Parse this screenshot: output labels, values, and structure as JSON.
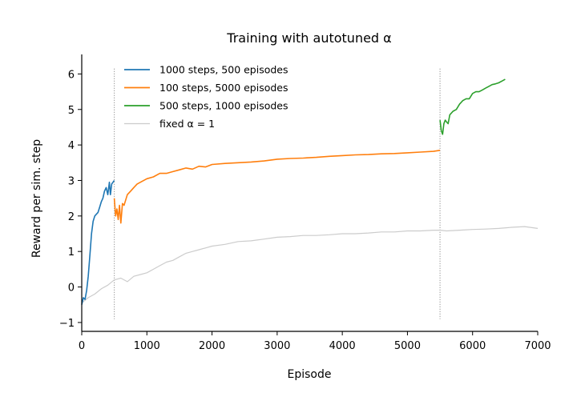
{
  "chart_data": {
    "type": "line",
    "title": "Training with autotuned α",
    "xlabel": "Episode",
    "ylabel": "Reward per sim. step",
    "xlim": [
      0,
      7000
    ],
    "ylim": [
      -1.25,
      6.55
    ],
    "xticks": [
      0,
      1000,
      2000,
      3000,
      4000,
      5000,
      6000,
      7000
    ],
    "xtick_labels": [
      "0",
      "1000",
      "2000",
      "3000",
      "4000",
      "5000",
      "6000",
      "7000"
    ],
    "yticks": [
      -1,
      0,
      1,
      2,
      3,
      4,
      5,
      6
    ],
    "ytick_labels": [
      "−1",
      "0",
      "1",
      "2",
      "3",
      "4",
      "5",
      "6"
    ],
    "grid": false,
    "legend_position": "top-left",
    "vlines": [
      500,
      5500
    ],
    "series": [
      {
        "name": "1000 steps, 500 episodes",
        "color": "#1f77b4",
        "x": [
          0,
          25,
          50,
          75,
          100,
          125,
          150,
          175,
          200,
          225,
          250,
          275,
          300,
          325,
          350,
          375,
          400,
          425,
          440,
          460,
          480,
          500
        ],
        "y": [
          -0.5,
          -0.3,
          -0.35,
          -0.1,
          0.3,
          0.9,
          1.5,
          1.85,
          2.0,
          2.05,
          2.1,
          2.25,
          2.4,
          2.5,
          2.7,
          2.8,
          2.6,
          2.95,
          2.6,
          2.9,
          2.95,
          3.0
        ]
      },
      {
        "name": "100 steps, 5000 episodes",
        "color": "#ff7f0e",
        "x": [
          500,
          520,
          540,
          560,
          580,
          600,
          625,
          650,
          700,
          750,
          800,
          850,
          900,
          1000,
          1100,
          1200,
          1300,
          1400,
          1500,
          1600,
          1700,
          1800,
          1900,
          2000,
          2200,
          2400,
          2600,
          2800,
          3000,
          3200,
          3400,
          3600,
          3800,
          4000,
          4200,
          4400,
          4600,
          4800,
          5000,
          5200,
          5400,
          5500
        ],
        "y": [
          2.5,
          2.0,
          2.2,
          1.9,
          2.3,
          1.8,
          2.35,
          2.3,
          2.6,
          2.7,
          2.8,
          2.9,
          2.95,
          3.05,
          3.1,
          3.2,
          3.2,
          3.25,
          3.3,
          3.35,
          3.32,
          3.4,
          3.38,
          3.45,
          3.48,
          3.5,
          3.52,
          3.55,
          3.6,
          3.62,
          3.63,
          3.65,
          3.68,
          3.7,
          3.72,
          3.73,
          3.75,
          3.76,
          3.78,
          3.8,
          3.82,
          3.85
        ]
      },
      {
        "name": "500 steps, 1000 episodes",
        "color": "#2ca02c",
        "x": [
          5500,
          5520,
          5540,
          5560,
          5580,
          5600,
          5625,
          5650,
          5700,
          5750,
          5800,
          5850,
          5900,
          5950,
          6000,
          6050,
          6100,
          6150,
          6200,
          6250,
          6300,
          6350,
          6400,
          6450,
          6500
        ],
        "y": [
          4.7,
          4.4,
          4.3,
          4.6,
          4.7,
          4.65,
          4.6,
          4.85,
          4.95,
          5.0,
          5.15,
          5.25,
          5.3,
          5.3,
          5.45,
          5.5,
          5.5,
          5.55,
          5.6,
          5.65,
          5.7,
          5.72,
          5.75,
          5.8,
          5.85
        ]
      },
      {
        "name": "fixed α = 1",
        "color": "#cccccc",
        "x": [
          0,
          100,
          200,
          300,
          400,
          500,
          600,
          700,
          800,
          900,
          1000,
          1100,
          1200,
          1300,
          1400,
          1500,
          1600,
          1700,
          1800,
          1900,
          2000,
          2200,
          2400,
          2600,
          2800,
          3000,
          3200,
          3400,
          3600,
          3800,
          4000,
          4200,
          4400,
          4600,
          4800,
          5000,
          5200,
          5400,
          5500,
          5600,
          5800,
          6000,
          6200,
          6400,
          6600,
          6800,
          7000
        ],
        "y": [
          -0.45,
          -0.3,
          -0.2,
          -0.05,
          0.05,
          0.2,
          0.25,
          0.15,
          0.3,
          0.35,
          0.4,
          0.5,
          0.6,
          0.7,
          0.75,
          0.85,
          0.95,
          1.0,
          1.05,
          1.1,
          1.15,
          1.2,
          1.28,
          1.3,
          1.35,
          1.4,
          1.42,
          1.45,
          1.45,
          1.47,
          1.5,
          1.5,
          1.52,
          1.55,
          1.55,
          1.58,
          1.58,
          1.6,
          1.6,
          1.58,
          1.6,
          1.62,
          1.63,
          1.65,
          1.68,
          1.7,
          1.65
        ]
      }
    ]
  }
}
